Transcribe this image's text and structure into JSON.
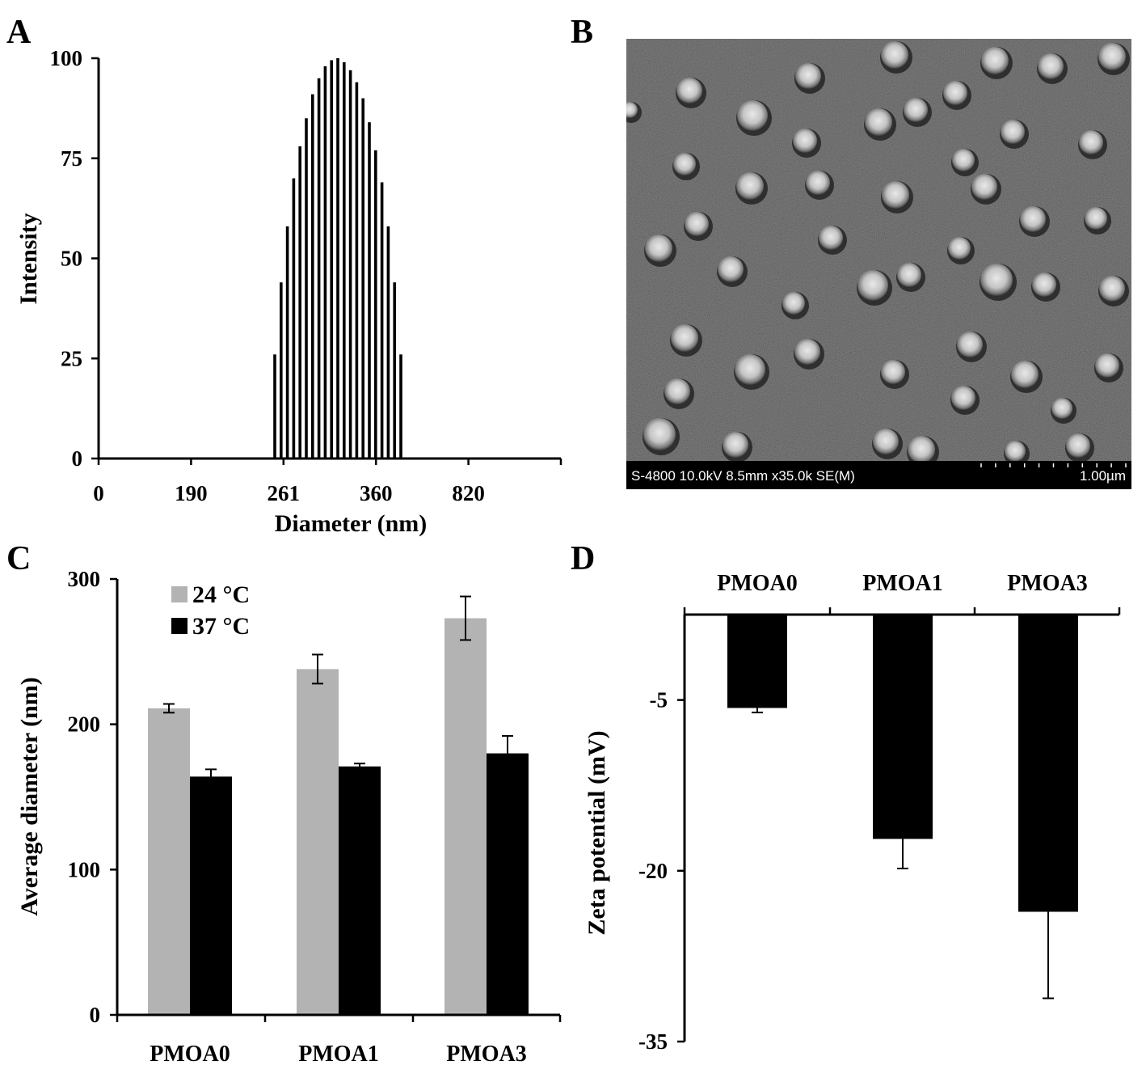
{
  "panels": {
    "a": "A",
    "b": "B",
    "c": "C",
    "d": "D"
  },
  "sem": {
    "info": "S-4800 10.0kV 8.5mm x35.0k SE(M)",
    "scale": "1.00µm"
  },
  "chart_data": [
    {
      "panel": "A",
      "type": "bar",
      "xlabel": "Diameter (nm)",
      "ylabel": "Intensity",
      "ylim": [
        0,
        100
      ],
      "yticks": [
        0,
        25,
        50,
        75,
        100
      ],
      "xtick_labels": [
        "0",
        "190",
        "261",
        "360",
        "820"
      ],
      "values": [
        26,
        44,
        58,
        70,
        78,
        85,
        91,
        95,
        98,
        99.5,
        100,
        99,
        97,
        94,
        90,
        84,
        77,
        69,
        58,
        44,
        26
      ],
      "grid": false
    },
    {
      "panel": "C",
      "type": "bar",
      "xlabel": "",
      "ylabel": "Average diameter (nm)",
      "ylim": [
        0,
        300
      ],
      "yticks": [
        0,
        100,
        200,
        300
      ],
      "categories": [
        "PMOA0",
        "PMOA1",
        "PMOA3"
      ],
      "series": [
        {
          "name": "24 °C",
          "color": "#b3b3b3",
          "values": [
            211,
            238,
            273
          ],
          "errors": [
            3,
            10,
            15
          ]
        },
        {
          "name": "37 °C",
          "color": "#000000",
          "values": [
            164,
            171,
            180
          ],
          "errors": [
            5,
            2,
            12
          ]
        }
      ],
      "legend": "top-left",
      "grid": false
    },
    {
      "panel": "D",
      "type": "bar",
      "xlabel": "",
      "ylabel": "Zeta potential (mV)",
      "ylim": [
        -35,
        2.5
      ],
      "yticks": [
        -5,
        -20,
        -35
      ],
      "categories": [
        "PMOA0",
        "PMOA1",
        "PMOA3"
      ],
      "values": [
        -5.7,
        -17.2,
        -23.6
      ],
      "errors": [
        0.4,
        2.6,
        7.6
      ],
      "color": "#000000",
      "x_axis_position": "top",
      "grid": false
    }
  ]
}
